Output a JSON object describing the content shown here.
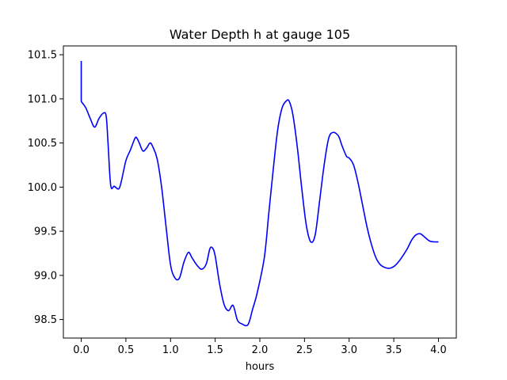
{
  "chart_data": {
    "type": "line",
    "title": "Water Depth h at gauge 105",
    "xlabel": "hours",
    "ylabel": "",
    "xlim": [
      -0.2,
      4.2
    ],
    "ylim": [
      98.29,
      101.6
    ],
    "xticks": [
      0.0,
      0.5,
      1.0,
      1.5,
      2.0,
      2.5,
      3.0,
      3.5,
      4.0
    ],
    "xtick_labels": [
      "0.0",
      "0.5",
      "1.0",
      "1.5",
      "2.0",
      "2.5",
      "3.0",
      "3.5",
      "4.0"
    ],
    "yticks": [
      98.5,
      99.0,
      99.5,
      100.0,
      100.5,
      101.0,
      101.5
    ],
    "ytick_labels": [
      "98.5",
      "99.0",
      "99.5",
      "100.0",
      "100.5",
      "101.0",
      "101.5"
    ],
    "grid": false,
    "legend": "none",
    "line_color": "#0000ff",
    "series": [
      {
        "x": [
          0.0,
          0.0,
          0.001,
          0.05,
          0.1,
          0.15,
          0.2,
          0.25,
          0.28,
          0.3,
          0.33,
          0.37,
          0.42,
          0.45,
          0.5,
          0.55,
          0.6,
          0.62,
          0.65,
          0.69,
          0.73,
          0.77,
          0.8,
          0.85,
          0.9,
          0.95,
          1.0,
          1.05,
          1.1,
          1.15,
          1.2,
          1.24,
          1.3,
          1.35,
          1.4,
          1.44,
          1.47,
          1.5,
          1.55,
          1.6,
          1.65,
          1.7,
          1.75,
          1.8,
          1.85,
          1.88,
          1.92,
          1.97,
          2.05,
          2.1,
          2.15,
          2.2,
          2.25,
          2.3,
          2.33,
          2.37,
          2.42,
          2.47,
          2.52,
          2.57,
          2.62,
          2.67,
          2.72,
          2.77,
          2.82,
          2.88,
          2.92,
          2.97,
          3.0,
          3.05,
          3.1,
          3.15,
          3.2,
          3.25,
          3.3,
          3.35,
          3.4,
          3.45,
          3.5,
          3.55,
          3.6,
          3.65,
          3.7,
          3.75,
          3.8,
          3.85,
          3.9,
          3.95,
          4.0
        ],
        "y": [
          101.43,
          100.99,
          100.97,
          100.9,
          100.78,
          100.68,
          100.78,
          100.84,
          100.8,
          100.5,
          100.02,
          100.01,
          99.98,
          100.07,
          100.3,
          100.42,
          100.55,
          100.56,
          100.5,
          100.41,
          100.44,
          100.5,
          100.46,
          100.32,
          100.0,
          99.55,
          99.12,
          98.97,
          98.97,
          99.15,
          99.26,
          99.2,
          99.11,
          99.07,
          99.13,
          99.3,
          99.31,
          99.22,
          98.9,
          98.67,
          98.6,
          98.66,
          98.49,
          98.45,
          98.43,
          98.47,
          98.62,
          98.8,
          99.2,
          99.7,
          100.2,
          100.65,
          100.9,
          100.98,
          100.97,
          100.82,
          100.45,
          99.98,
          99.57,
          99.38,
          99.46,
          99.85,
          100.25,
          100.55,
          100.62,
          100.58,
          100.47,
          100.35,
          100.33,
          100.25,
          100.05,
          99.8,
          99.55,
          99.35,
          99.2,
          99.12,
          99.09,
          99.08,
          99.1,
          99.15,
          99.22,
          99.3,
          99.4,
          99.46,
          99.47,
          99.43,
          99.39,
          99.38,
          99.38
        ]
      }
    ]
  }
}
